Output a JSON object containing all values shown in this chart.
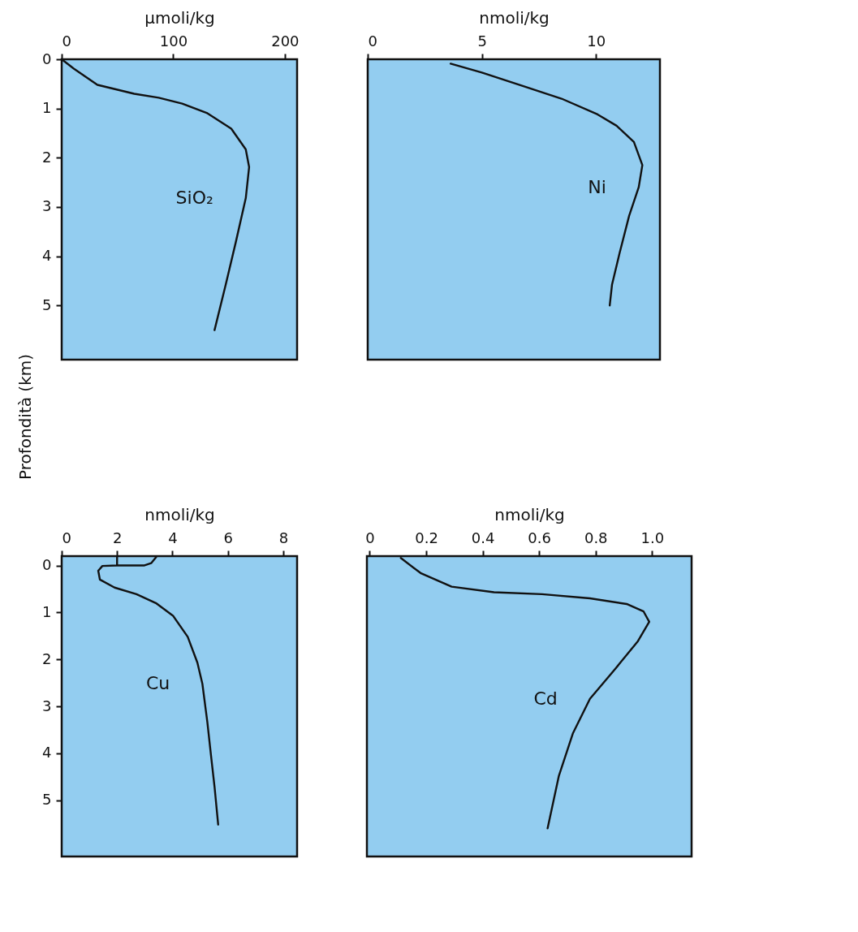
{
  "chart_data": [
    {
      "type": "line",
      "xlabel": "μmoli/kg",
      "ylabel": "Profondità (km)",
      "xlim": [
        0,
        211
      ],
      "xticks": [
        0,
        100,
        200
      ],
      "ylim": [
        6.1,
        0
      ],
      "yticks": [
        0,
        1,
        2,
        3,
        4,
        5
      ],
      "series": [
        {
          "name": "SiO₂",
          "color": "#111111",
          "x": [
            0,
            10.8,
            32,
            65,
            87,
            108,
            130,
            152,
            165,
            168,
            165,
            156,
            147,
            137
          ],
          "values": [
            0,
            0.19,
            0.52,
            0.7,
            0.78,
            0.9,
            1.09,
            1.41,
            1.83,
            2.19,
            2.82,
            3.72,
            4.58,
            5.5
          ]
        }
      ]
    },
    {
      "type": "line",
      "xlabel": "nmoli/kg",
      "xlim": [
        0,
        12.8
      ],
      "xticks": [
        0,
        5,
        10
      ],
      "ylim": [
        6.1,
        0
      ],
      "tick_labels": "x",
      "series": [
        {
          "name": "Ni",
          "color": "#111111",
          "x": [
            3.63,
            5.0,
            6.9,
            8.49,
            10.07,
            10.9,
            11.66,
            12.03,
            11.87,
            11.45,
            11.03,
            10.7,
            10.6
          ],
          "values": [
            0.09,
            0.27,
            0.56,
            0.8,
            1.12,
            1.35,
            1.68,
            2.15,
            2.6,
            3.18,
            3.94,
            4.58,
            5.0
          ]
        }
      ]
    },
    {
      "type": "line",
      "xlabel": "nmoli/kg",
      "xlim": [
        0,
        8.5
      ],
      "xticks": [
        0,
        2,
        4,
        6,
        8
      ],
      "ylim": [
        6.2,
        -0.2
      ],
      "yticks": [
        0,
        1,
        2,
        3,
        4,
        5
      ],
      "series": [
        {
          "name": "Cu",
          "color": "#111111",
          "x": [
            3.41,
            3.23,
            2.97,
            2.0,
            2.0,
            2.0,
            1.47,
            1.32,
            1.38,
            1.91,
            2.7,
            3.4,
            4.02,
            4.55,
            4.9,
            5.08,
            5.26,
            5.39,
            5.52,
            5.65
          ],
          "values": [
            -0.18,
            -0.05,
            0.0,
            0.0,
            -0.18,
            0.0,
            0.01,
            0.11,
            0.3,
            0.47,
            0.61,
            0.8,
            1.07,
            1.52,
            2.07,
            2.52,
            3.34,
            4.04,
            4.72,
            5.52
          ]
        }
      ]
    },
    {
      "type": "line",
      "xlabel": "nmoli/kg",
      "xlim": [
        -0.01,
        1.14
      ],
      "xticks": [
        {
          "value": 0,
          "label": "0"
        },
        0.2,
        0.4,
        0.6,
        0.8,
        {
          "value": 1,
          "label": "1.0"
        }
      ],
      "ylim": [
        6.2,
        -0.2
      ],
      "tick_labels": "x",
      "series": [
        {
          "name": "Cd",
          "color": "#111111",
          "x": [
            0.11,
            0.18,
            0.29,
            0.44,
            0.61,
            0.78,
            0.91,
            0.97,
            0.99,
            0.95,
            0.87,
            0.78,
            0.72,
            0.67,
            0.63
          ],
          "values": [
            -0.16,
            0.16,
            0.45,
            0.57,
            0.61,
            0.7,
            0.82,
            0.98,
            1.2,
            1.61,
            2.2,
            2.84,
            3.57,
            4.48,
            5.6
          ]
        }
      ]
    }
  ]
}
